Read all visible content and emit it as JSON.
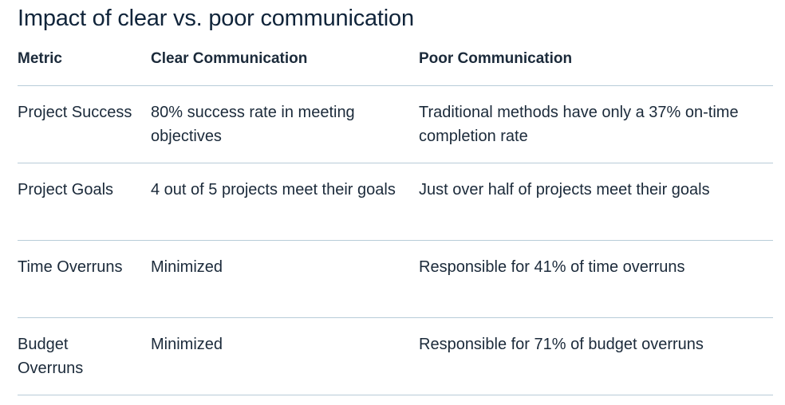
{
  "title": "Impact of clear vs. poor communication",
  "table": {
    "headers": [
      "Metric",
      "Clear Communication",
      "Poor Communication"
    ],
    "rows": [
      [
        "Project Success",
        "80% success rate in meeting objectives",
        "Traditional methods have only a 37% on-time completion rate"
      ],
      [
        "Project Goals",
        "4 out of 5 projects meet their goals",
        "Just over half of projects meet their goals"
      ],
      [
        "Time Overruns",
        "Minimized",
        "Responsible for 41% of time overruns"
      ],
      [
        "Budget Overruns",
        "Minimized",
        "Responsible for 71% of budget overruns"
      ]
    ]
  }
}
